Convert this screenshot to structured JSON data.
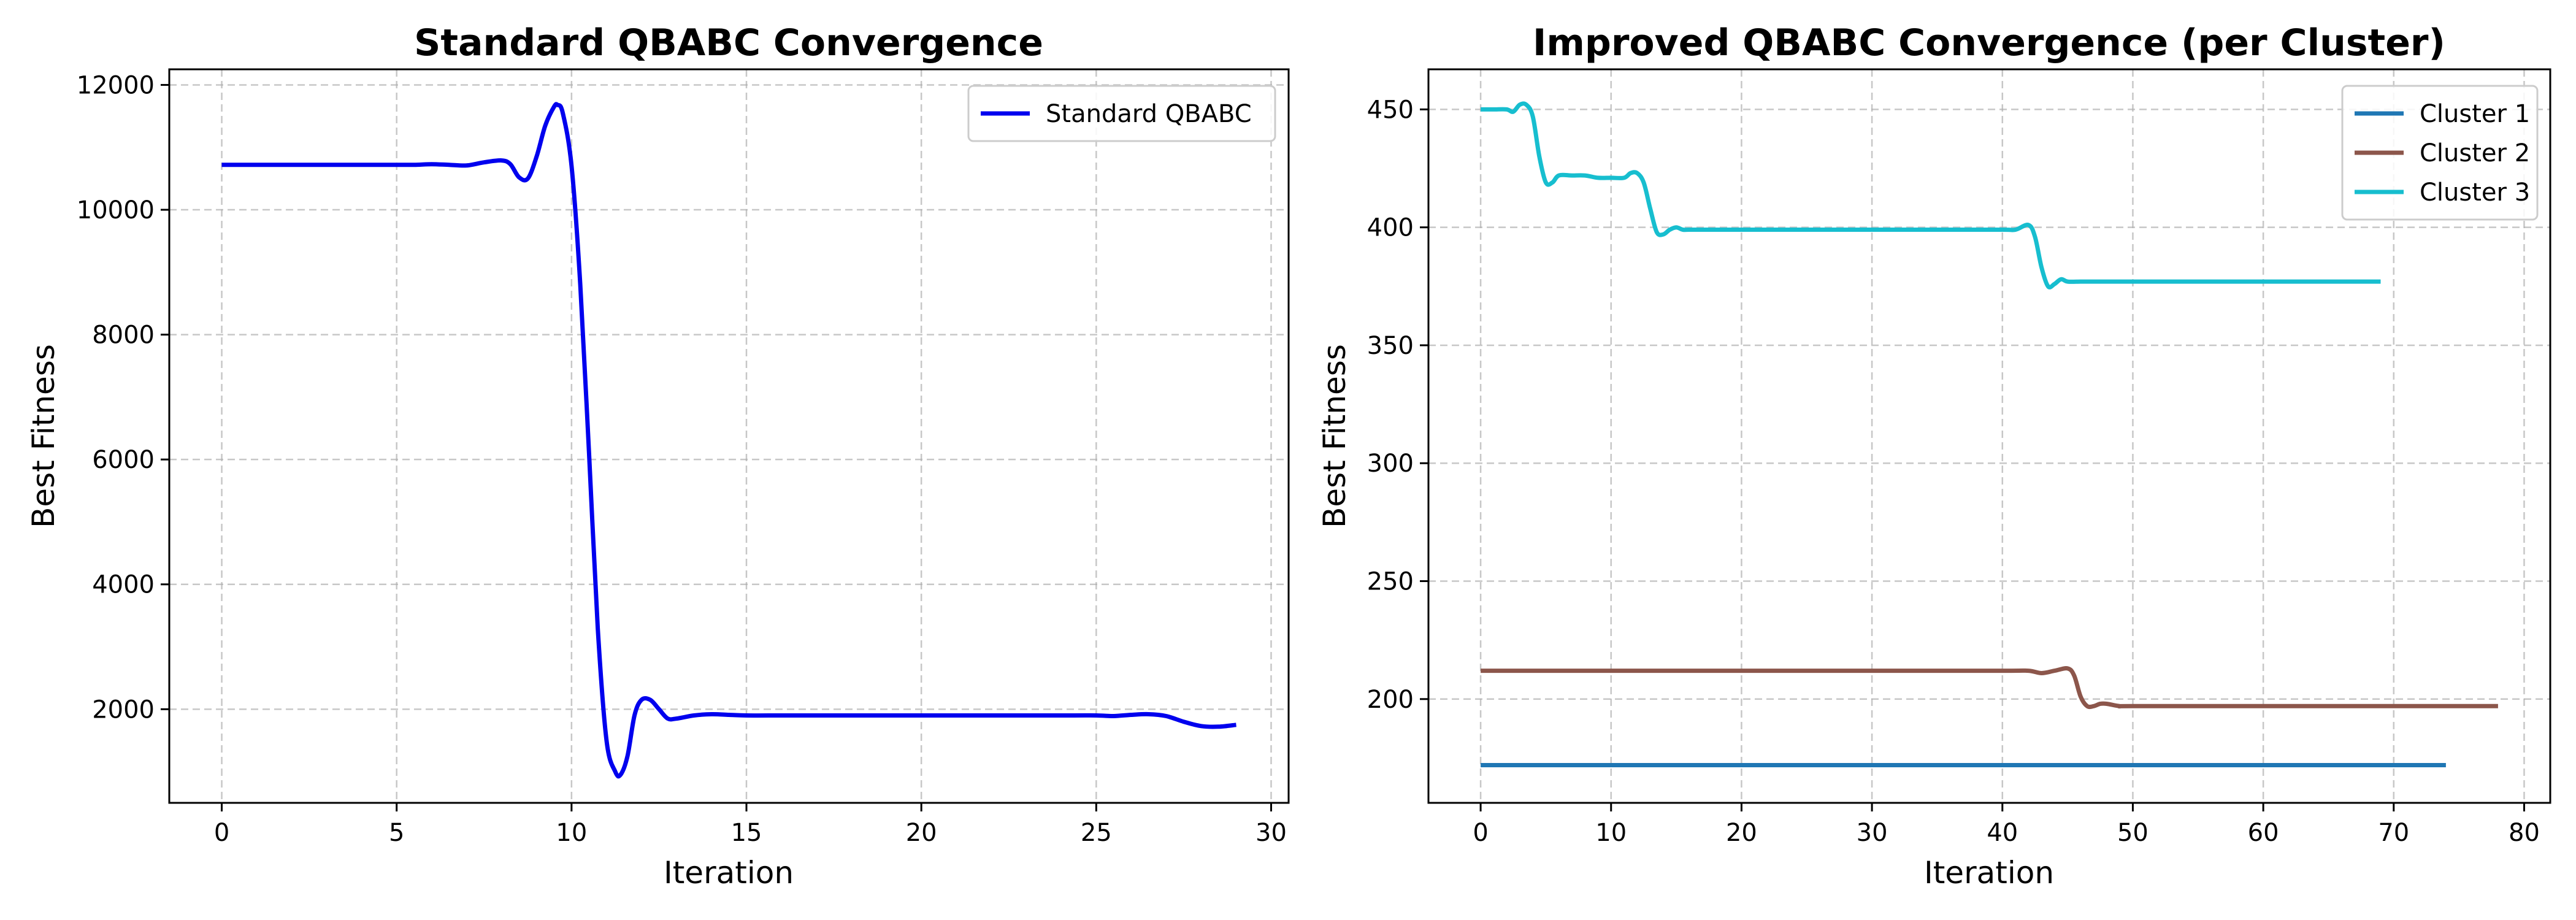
{
  "chart_data": [
    {
      "type": "line",
      "title": "Standard QBABC Convergence",
      "xlabel": "Iteration",
      "ylabel": "Best Fitness",
      "xlim": [
        -1.5,
        30.5
      ],
      "ylim": [
        500,
        12250
      ],
      "xticks": [
        0,
        5,
        10,
        15,
        20,
        25,
        30
      ],
      "yticks": [
        2000,
        4000,
        6000,
        8000,
        10000,
        12000
      ],
      "grid": true,
      "legend_position": "upper right",
      "series": [
        {
          "name": "Standard QBABC",
          "color": "#0000ee",
          "x": [
            0,
            0.5,
            1,
            1.5,
            2,
            2.5,
            3,
            3.5,
            4,
            4.5,
            5,
            5.5,
            6,
            6.5,
            7,
            7.5,
            8,
            8.25,
            8.5,
            8.75,
            9,
            9.25,
            9.5,
            9.6,
            9.75,
            10,
            10.25,
            10.5,
            10.75,
            11,
            11.25,
            11.4,
            11.6,
            11.8,
            12,
            12.25,
            12.5,
            12.75,
            13,
            13.5,
            14,
            14.5,
            15,
            16,
            17,
            18,
            19,
            20,
            21,
            22,
            23,
            24,
            25,
            25.5,
            26,
            26.5,
            27,
            27.5,
            28,
            28.5,
            29
          ],
          "y": [
            10720,
            10720,
            10720,
            10720,
            10720,
            10720,
            10720,
            10720,
            10720,
            10720,
            10720,
            10720,
            10730,
            10720,
            10710,
            10760,
            10790,
            10730,
            10520,
            10500,
            10850,
            11350,
            11650,
            11680,
            11550,
            10700,
            8800,
            6100,
            3300,
            1500,
            1000,
            950,
            1250,
            1900,
            2150,
            2150,
            2000,
            1850,
            1850,
            1900,
            1920,
            1910,
            1900,
            1900,
            1900,
            1900,
            1900,
            1900,
            1900,
            1900,
            1900,
            1900,
            1900,
            1890,
            1910,
            1920,
            1890,
            1800,
            1730,
            1720,
            1750
          ]
        }
      ]
    },
    {
      "type": "line",
      "title": "Improved QBABC Convergence (per Cluster)",
      "xlabel": "Iteration",
      "ylabel": "Best Fitness",
      "xlim": [
        -4,
        82
      ],
      "ylim": [
        156,
        467
      ],
      "xticks": [
        0,
        10,
        20,
        30,
        40,
        50,
        60,
        70,
        80
      ],
      "yticks": [
        200,
        250,
        300,
        350,
        400,
        450
      ],
      "grid": true,
      "legend_position": "upper right",
      "series": [
        {
          "name": "Cluster 1",
          "color": "#1f77b4",
          "x": [
            0,
            74
          ],
          "y": [
            172,
            172
          ]
        },
        {
          "name": "Cluster 2",
          "color": "#8c564b",
          "x": [
            0,
            10,
            20,
            30,
            40,
            42,
            43,
            44,
            45,
            45.5,
            46,
            46.5,
            47,
            47.5,
            48,
            49,
            50,
            60,
            70,
            78
          ],
          "y": [
            212,
            212,
            212,
            212,
            212,
            212,
            211,
            212,
            213,
            210,
            201,
            197,
            197,
            198,
            198,
            197,
            197,
            197,
            197,
            197
          ]
        },
        {
          "name": "Cluster 3",
          "color": "#17becf",
          "x": [
            0,
            1,
            2,
            2.5,
            3,
            3.5,
            4,
            4.5,
            5,
            5.5,
            6,
            7,
            8,
            9,
            10,
            11,
            11.5,
            12,
            12.5,
            13,
            13.5,
            14,
            14.5,
            15,
            15.5,
            16,
            17,
            18,
            20,
            25,
            30,
            35,
            40,
            41,
            42,
            42.5,
            43,
            43.5,
            44,
            44.5,
            45,
            46,
            47,
            50,
            60,
            69
          ],
          "y": [
            450,
            450,
            450,
            449,
            452,
            452,
            447,
            430,
            419,
            419,
            422,
            422,
            422,
            421,
            421,
            421,
            423,
            423,
            419,
            408,
            398,
            397,
            399,
            400,
            399,
            399,
            399,
            399,
            399,
            399,
            399,
            399,
            399,
            399,
            401,
            396,
            383,
            375,
            376,
            378,
            377,
            377,
            377,
            377,
            377,
            377
          ]
        }
      ]
    }
  ]
}
